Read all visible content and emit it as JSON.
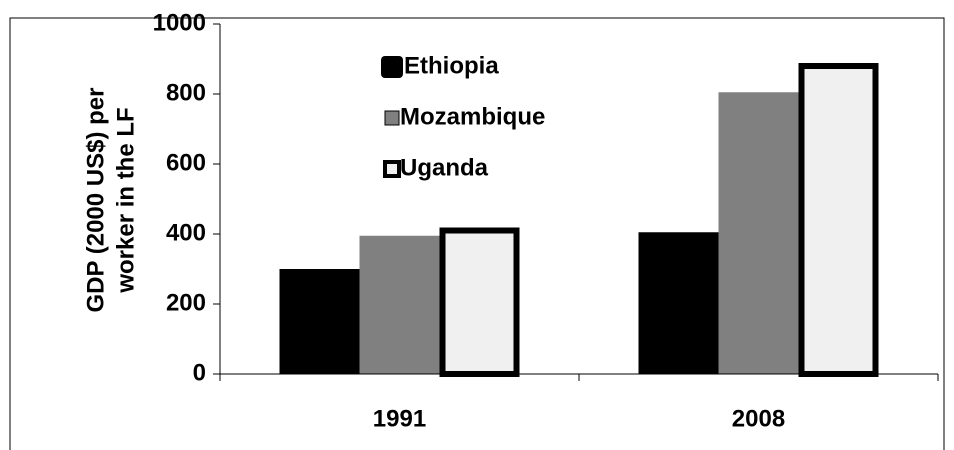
{
  "chart_data": {
    "type": "bar",
    "ylabel": [
      "GDP (2000 US$) per",
      "worker in the LF"
    ],
    "categories": [
      "1991",
      "2008"
    ],
    "series": [
      {
        "name": "Ethiopia",
        "color": "#000000",
        "values": [
          300,
          405
        ]
      },
      {
        "name": "Mozambique",
        "color": "#808080",
        "values": [
          395,
          805
        ]
      },
      {
        "name": "Uganda",
        "color": "#f0f0f0",
        "values": [
          410,
          880
        ]
      }
    ],
    "ylim": [
      0,
      1000
    ],
    "yticks": [
      0,
      200,
      400,
      600,
      800,
      1000
    ],
    "grid": false,
    "legend": "top-left"
  }
}
